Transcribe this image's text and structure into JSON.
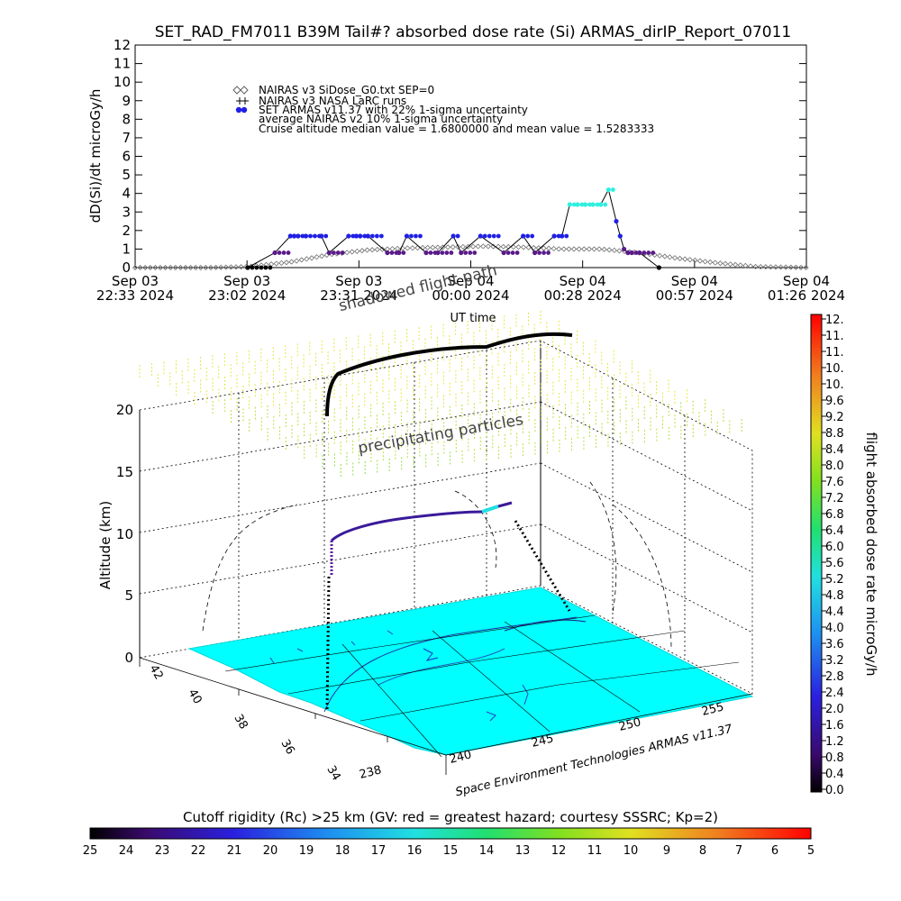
{
  "colors": {
    "armas_blue": "#1f1fe6",
    "armas_cyan": "#2ff0e0",
    "armas_purple": "#5a1a8a",
    "nairas_gray": "#808080",
    "ground": "#00ffff",
    "particles": "#a6e22e"
  },
  "chart_data": [
    {
      "type": "line",
      "title": "SET_RAD_FM7011  B39M Tail#? absorbed dose rate (Si) ARMAS_dirIP_Report_07011",
      "xlabel": "UT time",
      "ylabel": "dD(Si)/dt microGy/h",
      "ylim": [
        0,
        12
      ],
      "yticks": [
        "0",
        "1",
        "2",
        "3",
        "4",
        "5",
        "6",
        "7",
        "8",
        "9",
        "10",
        "11",
        "12"
      ],
      "xticks": [
        {
          "d": "Sep 03",
          "t": "22:33 2024"
        },
        {
          "d": "Sep 03",
          "t": "23:02 2024"
        },
        {
          "d": "Sep 03",
          "t": "23:31 2024"
        },
        {
          "d": "Sep 04",
          "t": "00:00 2024"
        },
        {
          "d": "Sep 04",
          "t": "00:28 2024"
        },
        {
          "d": "Sep 04",
          "t": "00:57 2024"
        },
        {
          "d": "Sep 04",
          "t": "01:26 2024"
        }
      ],
      "xlim_minutes": [
        0,
        173
      ],
      "legend": [
        "NAIRAS v3 SiDose_G0.txt SEP=0",
        "NAIRAS v3 NASA LaRC runs",
        "SET ARMAS v11.37 with 22% 1-sigma uncertainty",
        "average NAIRAS v2 10% 1-sigma uncertainty",
        "Cruise altitude median value = 1.6800000 and mean value = 1.5283333"
      ],
      "legend_position": "top-left",
      "series": [
        {
          "name": "SET ARMAS v11.37 with 22% 1-sigma uncertainty",
          "x": [
            29,
            36,
            40,
            41,
            42,
            44,
            48,
            50,
            55,
            57,
            58,
            60,
            65,
            68,
            70,
            75,
            78,
            82,
            84,
            89,
            95,
            100,
            103,
            108,
            110,
            112,
            114,
            116,
            118,
            120,
            122,
            124,
            125,
            126,
            127,
            128,
            130,
            135
          ],
          "y": [
            0,
            0.8,
            1.7,
            1.7,
            1.7,
            1.7,
            1.7,
            0.8,
            1.7,
            1.7,
            1.7,
            1.7,
            0.8,
            0.8,
            1.7,
            0.8,
            0.8,
            1.7,
            0.8,
            1.7,
            0.8,
            1.7,
            0.8,
            1.7,
            1.7,
            3.4,
            3.4,
            3.4,
            3.4,
            3.4,
            4.2,
            2.5,
            1.7,
            1.0,
            0.8,
            0.8,
            0.8,
            0
          ]
        },
        {
          "name": "NAIRAS v3 SiDose_G0.txt SEP=0",
          "x": [
            0,
            20,
            29,
            40,
            50,
            60,
            70,
            80,
            90,
            100,
            110,
            120,
            130,
            140,
            150,
            160,
            173
          ],
          "y": [
            0,
            0,
            0.05,
            0.3,
            0.7,
            0.95,
            1.05,
            1.1,
            1.15,
            1.1,
            1.0,
            1.0,
            0.8,
            0.5,
            0.25,
            0.05,
            0
          ]
        }
      ],
      "cruise_median": 1.68,
      "cruise_mean": 1.5283333
    },
    {
      "type": "scatter",
      "title": "",
      "zlabel": "Altitude (km)",
      "zticks": [
        "0",
        "5",
        "10",
        "15",
        "20"
      ],
      "lat_ticks": [
        "42",
        "40",
        "38",
        "36",
        "34"
      ],
      "lon_ticks": [
        "238",
        "240",
        "245",
        "250",
        "255"
      ],
      "annotations": [
        "shadowed flight path",
        "precipitating particles"
      ],
      "colorbar": {
        "label": "flight absorbed dose rate microGy/h",
        "ticks": [
          "12.",
          "11.",
          "11.",
          "10.",
          "10.",
          "9.6",
          "9.2",
          "8.8",
          "8.4",
          "8.0",
          "7.6",
          "7.2",
          "6.8",
          "6.4",
          "6.0",
          "5.6",
          "5.2",
          "4.8",
          "4.4",
          "4.0",
          "3.6",
          "3.2",
          "2.8",
          "2.4",
          "2.0",
          "1.6",
          "1.2",
          "0.8",
          "0.4",
          "0.0"
        ],
        "range": [
          0,
          12
        ]
      }
    },
    {
      "type": "heatmap",
      "title": "Cutoff rigidity (Rc) >25 km (GV: red = greatest hazard; courtesy SSSRC; Kp=2)",
      "ticks": [
        "25",
        "24",
        "23",
        "22",
        "21",
        "20",
        "19",
        "18",
        "17",
        "16",
        "15",
        "14",
        "13",
        "12",
        "11",
        "10",
        "9",
        "8",
        "7",
        "6",
        "5"
      ],
      "range": [
        25,
        5
      ]
    }
  ],
  "footer_credit": "Space Environment Technologies ARMAS v11.37"
}
